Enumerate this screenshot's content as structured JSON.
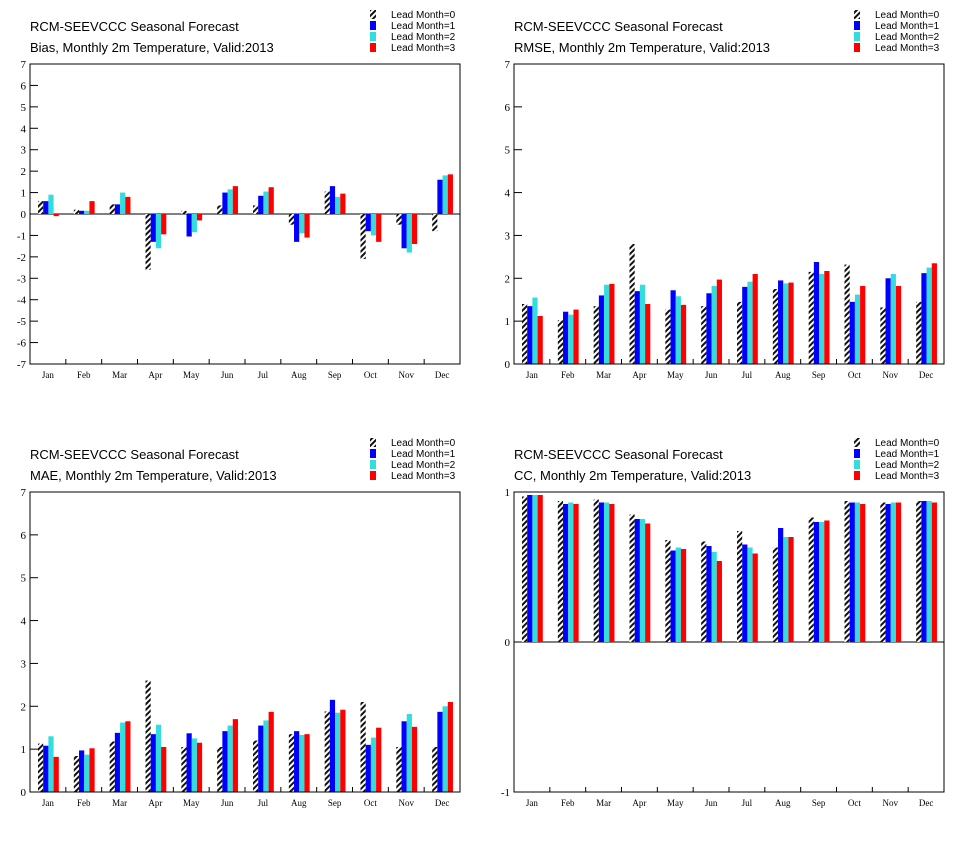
{
  "colors": {
    "lead0": "#111111",
    "lead1": "#0000ff",
    "lead2": "#33dddd",
    "lead3": "#ff0000"
  },
  "legend": [
    "Lead Month=0",
    "Lead Month=1",
    "Lead Month=2",
    "Lead Month=3"
  ],
  "chart_data": [
    {
      "type": "bar",
      "title": "RCM-SEEVCCC Seasonal Forecast",
      "subtitle": "Bias, Monthly 2m Temperature, Valid:2013",
      "categories": [
        "Jan",
        "Feb",
        "Mar",
        "Apr",
        "May",
        "Jun",
        "Jul",
        "Aug",
        "Sep",
        "Oct",
        "Nov",
        "Dec"
      ],
      "ylim": [
        -7,
        7
      ],
      "yticks": [
        "7",
        "6",
        "5",
        "4",
        "3",
        "2",
        "1",
        "0",
        "-1",
        "-2",
        "-3",
        "-4",
        "-5",
        "-6",
        "-7"
      ],
      "series": [
        {
          "name": "Lead Month=0",
          "values": [
            0.6,
            0.2,
            0.45,
            -2.6,
            0.15,
            0.4,
            0.4,
            -0.5,
            1.05,
            -2.1,
            -0.5,
            -0.8
          ]
        },
        {
          "name": "Lead Month=1",
          "values": [
            0.6,
            0.15,
            0.45,
            -1.3,
            -1.05,
            1.0,
            0.85,
            -1.3,
            1.3,
            -0.8,
            -1.6,
            1.6
          ]
        },
        {
          "name": "Lead Month=2",
          "values": [
            0.9,
            0.15,
            1.0,
            -1.6,
            -0.85,
            1.15,
            1.05,
            -0.9,
            0.8,
            -1.0,
            -1.8,
            1.8
          ]
        },
        {
          "name": "Lead Month=3",
          "values": [
            -0.1,
            0.6,
            0.8,
            -0.95,
            -0.3,
            1.3,
            1.25,
            -1.1,
            0.95,
            -1.3,
            -1.4,
            1.85
          ]
        }
      ]
    },
    {
      "type": "bar",
      "title": "RCM-SEEVCCC Seasonal Forecast",
      "subtitle": "RMSE, Monthly 2m Temperature, Valid:2013",
      "categories": [
        "Jan",
        "Feb",
        "Mar",
        "Apr",
        "May",
        "Jun",
        "Jul",
        "Aug",
        "Sep",
        "Oct",
        "Nov",
        "Dec"
      ],
      "ylim": [
        0,
        7
      ],
      "yticks": [
        "7",
        "6",
        "5",
        "4",
        "3",
        "2",
        "1",
        "0"
      ],
      "series": [
        {
          "name": "Lead Month=0",
          "values": [
            1.4,
            1.02,
            1.35,
            2.8,
            1.27,
            1.35,
            1.45,
            1.75,
            2.15,
            2.32,
            1.32,
            1.45
          ]
        },
        {
          "name": "Lead Month=1",
          "values": [
            1.35,
            1.22,
            1.6,
            1.7,
            1.72,
            1.65,
            1.8,
            1.95,
            2.38,
            1.45,
            2.0,
            2.12
          ]
        },
        {
          "name": "Lead Month=2",
          "values": [
            1.55,
            1.15,
            1.85,
            1.85,
            1.58,
            1.82,
            1.92,
            1.88,
            2.1,
            1.62,
            2.1,
            2.25
          ]
        },
        {
          "name": "Lead Month=3",
          "values": [
            1.12,
            1.27,
            1.87,
            1.4,
            1.38,
            1.97,
            2.1,
            1.9,
            2.17,
            1.82,
            1.82,
            2.35
          ]
        }
      ]
    },
    {
      "type": "bar",
      "title": "RCM-SEEVCCC Seasonal Forecast",
      "subtitle": "MAE, Monthly 2m Temperature, Valid:2013",
      "categories": [
        "Jan",
        "Feb",
        "Mar",
        "Apr",
        "May",
        "Jun",
        "Jul",
        "Aug",
        "Sep",
        "Oct",
        "Nov",
        "Dec"
      ],
      "ylim": [
        0,
        7
      ],
      "yticks": [
        "7",
        "6",
        "5",
        "4",
        "3",
        "2",
        "1",
        "0"
      ],
      "series": [
        {
          "name": "Lead Month=0",
          "values": [
            1.13,
            0.84,
            1.18,
            2.6,
            1.05,
            1.05,
            1.2,
            1.35,
            1.88,
            2.1,
            1.05,
            1.05
          ]
        },
        {
          "name": "Lead Month=1",
          "values": [
            1.08,
            0.97,
            1.38,
            1.35,
            1.37,
            1.42,
            1.55,
            1.42,
            2.15,
            1.1,
            1.65,
            1.87
          ]
        },
        {
          "name": "Lead Month=2",
          "values": [
            1.3,
            0.87,
            1.62,
            1.57,
            1.25,
            1.55,
            1.67,
            1.33,
            1.85,
            1.27,
            1.82,
            2.0
          ]
        },
        {
          "name": "Lead Month=3",
          "values": [
            0.82,
            1.02,
            1.65,
            1.05,
            1.15,
            1.7,
            1.87,
            1.35,
            1.92,
            1.5,
            1.52,
            2.1
          ]
        }
      ]
    },
    {
      "type": "bar",
      "title": "RCM-SEEVCCC Seasonal Forecast",
      "subtitle": "CC, Monthly 2m Temperature, Valid:2013",
      "categories": [
        "Jan",
        "Feb",
        "Mar",
        "Apr",
        "May",
        "Jun",
        "Jul",
        "Aug",
        "Sep",
        "Oct",
        "Nov",
        "Dec"
      ],
      "ylim": [
        -1,
        1
      ],
      "yticks": [
        "1",
        "0",
        "-1"
      ],
      "series": [
        {
          "name": "Lead Month=0",
          "values": [
            0.97,
            0.94,
            0.95,
            0.85,
            0.68,
            0.67,
            0.74,
            0.63,
            0.83,
            0.94,
            0.93,
            0.94
          ]
        },
        {
          "name": "Lead Month=1",
          "values": [
            0.98,
            0.92,
            0.93,
            0.82,
            0.61,
            0.64,
            0.65,
            0.76,
            0.8,
            0.93,
            0.92,
            0.94
          ]
        },
        {
          "name": "Lead Month=2",
          "values": [
            0.98,
            0.93,
            0.93,
            0.82,
            0.63,
            0.6,
            0.63,
            0.7,
            0.8,
            0.93,
            0.93,
            0.94
          ]
        },
        {
          "name": "Lead Month=3",
          "values": [
            0.98,
            0.92,
            0.92,
            0.79,
            0.62,
            0.54,
            0.59,
            0.7,
            0.81,
            0.92,
            0.93,
            0.93
          ]
        }
      ]
    }
  ]
}
